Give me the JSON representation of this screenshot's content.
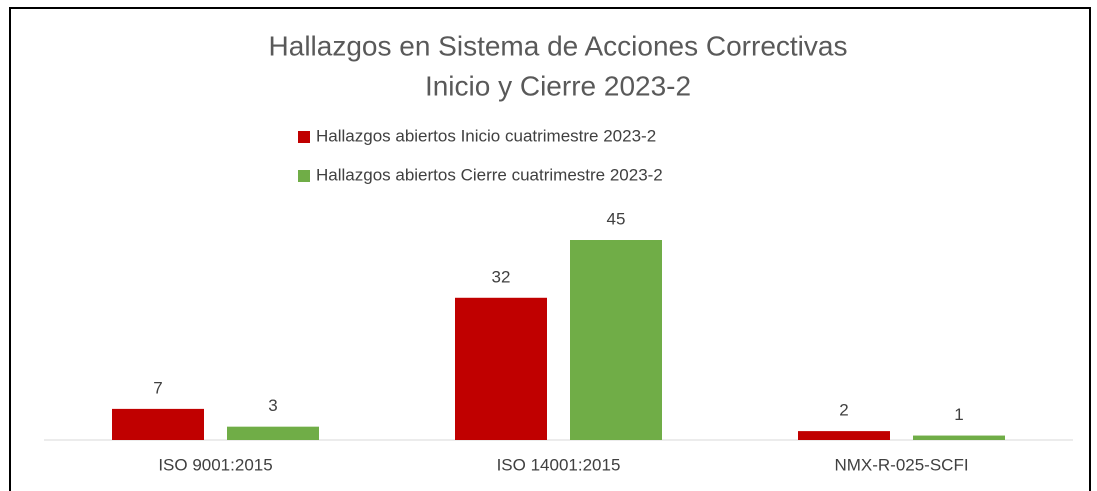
{
  "chart_data": {
    "type": "bar",
    "title": "Hallazgos en Sistema de Acciones Correctivas",
    "subtitle": "Inicio y Cierre 2023-2",
    "categories": [
      "ISO 9001:2015",
      "ISO 14001:2015",
      "NMX-R-025-SCFI"
    ],
    "series": [
      {
        "name": "Hallazgos abiertos Inicio cuatrimestre 2023-2",
        "color": "#c00000",
        "values": [
          7,
          32,
          2
        ]
      },
      {
        "name": "Hallazgos abiertos Cierre cuatrimestre 2023-2",
        "color": "#70ad47",
        "values": [
          3,
          45,
          1
        ]
      }
    ],
    "legend": "top"
  }
}
